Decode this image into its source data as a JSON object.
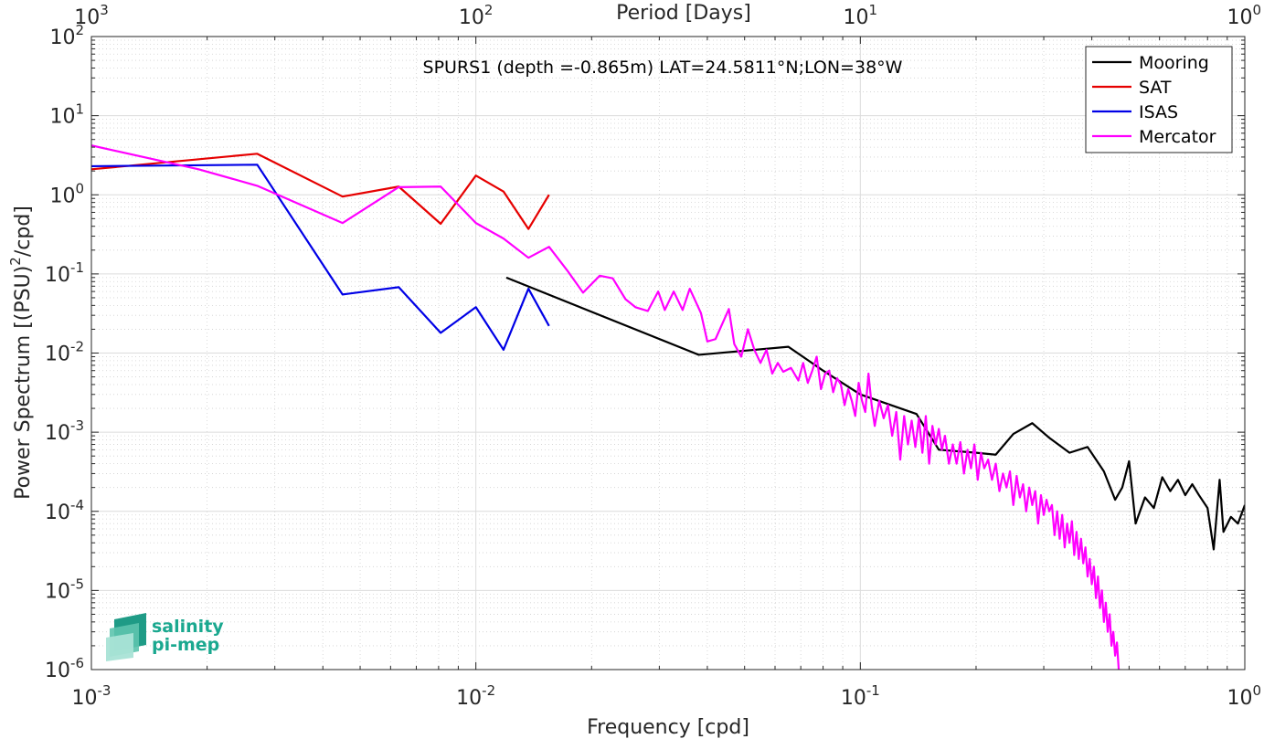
{
  "chart_data": {
    "type": "line",
    "title": "SPURS1 (depth =-0.865m) LAT=24.5811°N;LON=38°W",
    "xlabel": "Frequency [cpd]",
    "ylabel": "Power Spectrum [(PSU)²/cpd]",
    "x2label": "Period [Days]",
    "xscale": "log",
    "yscale": "log",
    "xlim": [
      0.001,
      1
    ],
    "ylim": [
      1e-06,
      100
    ],
    "grid": true,
    "legend_position": "top-right",
    "x_ticks": [
      {
        "value": 0.001,
        "base": "10",
        "exp": "-3"
      },
      {
        "value": 0.01,
        "base": "10",
        "exp": "-2"
      },
      {
        "value": 0.1,
        "base": "10",
        "exp": "-1"
      },
      {
        "value": 1,
        "base": "10",
        "exp": "0"
      }
    ],
    "x2_ticks": [
      {
        "value": 0.001,
        "base": "10",
        "exp": "3"
      },
      {
        "value": 0.01,
        "base": "10",
        "exp": "2"
      },
      {
        "value": 0.1,
        "base": "10",
        "exp": "1"
      },
      {
        "value": 1,
        "base": "10",
        "exp": "0"
      }
    ],
    "y_ticks": [
      {
        "value": 1e-06,
        "base": "10",
        "exp": "-6"
      },
      {
        "value": 1e-05,
        "base": "10",
        "exp": "-5"
      },
      {
        "value": 0.0001,
        "base": "10",
        "exp": "-4"
      },
      {
        "value": 0.001,
        "base": "10",
        "exp": "-3"
      },
      {
        "value": 0.01,
        "base": "10",
        "exp": "-2"
      },
      {
        "value": 0.1,
        "base": "10",
        "exp": "-1"
      },
      {
        "value": 1,
        "base": "10",
        "exp": "0"
      },
      {
        "value": 10,
        "base": "10",
        "exp": "1"
      },
      {
        "value": 100,
        "base": "10",
        "exp": "2"
      }
    ],
    "series": [
      {
        "name": "Mooring",
        "color": "#000000",
        "points": [
          [
            0.012,
            0.09
          ],
          [
            0.038,
            0.0095
          ],
          [
            0.065,
            0.012
          ],
          [
            0.08,
            0.006
          ],
          [
            0.1,
            0.003
          ],
          [
            0.14,
            0.0017
          ],
          [
            0.16,
            0.0006
          ],
          [
            0.2,
            0.00055
          ],
          [
            0.225,
            0.00052
          ],
          [
            0.25,
            0.00095
          ],
          [
            0.28,
            0.0013
          ],
          [
            0.31,
            0.00085
          ],
          [
            0.35,
            0.00055
          ],
          [
            0.39,
            0.00065
          ],
          [
            0.43,
            0.00032
          ],
          [
            0.46,
            0.00014
          ],
          [
            0.48,
            0.0002
          ],
          [
            0.5,
            0.00043
          ],
          [
            0.52,
            7e-05
          ],
          [
            0.55,
            0.00015
          ],
          [
            0.58,
            0.00011
          ],
          [
            0.61,
            0.00027
          ],
          [
            0.64,
            0.00018
          ],
          [
            0.67,
            0.00025
          ],
          [
            0.7,
            0.00016
          ],
          [
            0.73,
            0.00022
          ],
          [
            0.76,
            0.00016
          ],
          [
            0.8,
            0.00011
          ],
          [
            0.83,
            3.3e-05
          ],
          [
            0.86,
            0.00025
          ],
          [
            0.88,
            5.5e-05
          ],
          [
            0.92,
            8.5e-05
          ],
          [
            0.96,
            7e-05
          ],
          [
            1.0,
            0.00012
          ]
        ]
      },
      {
        "name": "SAT",
        "color": "#e60000",
        "points": [
          [
            0.001,
            2.1
          ],
          [
            0.0027,
            3.3
          ],
          [
            0.0045,
            0.95
          ],
          [
            0.0063,
            1.27
          ],
          [
            0.0081,
            0.43
          ],
          [
            0.01,
            1.75
          ],
          [
            0.0118,
            1.1
          ],
          [
            0.0137,
            0.37
          ],
          [
            0.0155,
            1.0
          ]
        ]
      },
      {
        "name": "ISAS",
        "color": "#0000e6",
        "points": [
          [
            0.001,
            2.3
          ],
          [
            0.0027,
            2.4
          ],
          [
            0.0045,
            0.055
          ],
          [
            0.0063,
            0.068
          ],
          [
            0.0081,
            0.018
          ],
          [
            0.01,
            0.038
          ],
          [
            0.0118,
            0.011
          ],
          [
            0.0137,
            0.065
          ],
          [
            0.0155,
            0.022
          ]
        ]
      },
      {
        "name": "Mercator",
        "color": "#ff00ff",
        "points": [
          [
            0.001,
            4.2
          ],
          [
            0.0019,
            2.1
          ],
          [
            0.0027,
            1.3
          ],
          [
            0.0045,
            0.44
          ],
          [
            0.0063,
            1.25
          ],
          [
            0.0081,
            1.27
          ],
          [
            0.01,
            0.44
          ],
          [
            0.0118,
            0.28
          ],
          [
            0.0137,
            0.16
          ],
          [
            0.0155,
            0.22
          ],
          [
            0.0173,
            0.11
          ],
          [
            0.019,
            0.058
          ],
          [
            0.021,
            0.095
          ],
          [
            0.0227,
            0.088
          ],
          [
            0.0245,
            0.048
          ],
          [
            0.026,
            0.038
          ],
          [
            0.028,
            0.034
          ],
          [
            0.0298,
            0.06
          ],
          [
            0.031,
            0.035
          ],
          [
            0.0327,
            0.06
          ],
          [
            0.0345,
            0.035
          ],
          [
            0.036,
            0.065
          ],
          [
            0.0385,
            0.032
          ],
          [
            0.04,
            0.014
          ],
          [
            0.042,
            0.015
          ],
          [
            0.0435,
            0.022
          ],
          [
            0.0455,
            0.036
          ],
          [
            0.047,
            0.013
          ],
          [
            0.049,
            0.009
          ],
          [
            0.051,
            0.02
          ],
          [
            0.053,
            0.011
          ],
          [
            0.055,
            0.0075
          ],
          [
            0.057,
            0.011
          ],
          [
            0.059,
            0.0055
          ],
          [
            0.061,
            0.0075
          ],
          [
            0.063,
            0.0058
          ],
          [
            0.066,
            0.0065
          ],
          [
            0.069,
            0.0045
          ],
          [
            0.071,
            0.0075
          ],
          [
            0.073,
            0.0042
          ],
          [
            0.075,
            0.006
          ],
          [
            0.077,
            0.009
          ],
          [
            0.079,
            0.0035
          ],
          [
            0.081,
            0.0055
          ],
          [
            0.083,
            0.006
          ],
          [
            0.085,
            0.0032
          ],
          [
            0.087,
            0.0048
          ],
          [
            0.089,
            0.004
          ],
          [
            0.091,
            0.0022
          ],
          [
            0.093,
            0.0035
          ],
          [
            0.095,
            0.0025
          ],
          [
            0.097,
            0.0016
          ],
          [
            0.099,
            0.0042
          ],
          [
            0.101,
            0.0025
          ],
          [
            0.103,
            0.0018
          ],
          [
            0.105,
            0.0055
          ],
          [
            0.107,
            0.0022
          ],
          [
            0.109,
            0.0012
          ],
          [
            0.112,
            0.0025
          ],
          [
            0.115,
            0.0015
          ],
          [
            0.118,
            0.0022
          ],
          [
            0.121,
            0.0009
          ],
          [
            0.124,
            0.0018
          ],
          [
            0.127,
            0.00045
          ],
          [
            0.13,
            0.0016
          ],
          [
            0.133,
            0.0007
          ],
          [
            0.136,
            0.0014
          ],
          [
            0.139,
            0.00065
          ],
          [
            0.142,
            0.0015
          ],
          [
            0.145,
            0.00055
          ],
          [
            0.148,
            0.0016
          ],
          [
            0.151,
            0.0004
          ],
          [
            0.154,
            0.0012
          ],
          [
            0.157,
            0.0007
          ],
          [
            0.16,
            0.0011
          ],
          [
            0.163,
            0.0006
          ],
          [
            0.166,
            0.0009
          ],
          [
            0.17,
            0.0004
          ],
          [
            0.174,
            0.0007
          ],
          [
            0.178,
            0.0004
          ],
          [
            0.182,
            0.00075
          ],
          [
            0.186,
            0.0003
          ],
          [
            0.19,
            0.0006
          ],
          [
            0.194,
            0.00035
          ],
          [
            0.198,
            0.0007
          ],
          [
            0.202,
            0.00025
          ],
          [
            0.206,
            0.00055
          ],
          [
            0.21,
            0.00035
          ],
          [
            0.215,
            0.00045
          ],
          [
            0.22,
            0.00025
          ],
          [
            0.225,
            0.0004
          ],
          [
            0.23,
            0.00018
          ],
          [
            0.235,
            0.0003
          ],
          [
            0.24,
            0.0002
          ],
          [
            0.245,
            0.00032
          ],
          [
            0.25,
            0.00012
          ],
          [
            0.255,
            0.00028
          ],
          [
            0.26,
            0.00015
          ],
          [
            0.265,
            0.00022
          ],
          [
            0.27,
            0.0001
          ],
          [
            0.275,
            0.0002
          ],
          [
            0.28,
            0.00012
          ],
          [
            0.285,
            0.00018
          ],
          [
            0.29,
            7e-05
          ],
          [
            0.295,
            0.00016
          ],
          [
            0.3,
            9e-05
          ],
          [
            0.305,
            0.00014
          ],
          [
            0.31,
            0.0001
          ],
          [
            0.315,
            0.00012
          ],
          [
            0.32,
            5e-05
          ],
          [
            0.325,
            0.0001
          ],
          [
            0.33,
            4.5e-05
          ],
          [
            0.335,
            9e-05
          ],
          [
            0.34,
            3.5e-05
          ],
          [
            0.345,
            7e-05
          ],
          [
            0.35,
            4e-05
          ],
          [
            0.355,
            7.5e-05
          ],
          [
            0.36,
            2.8e-05
          ],
          [
            0.365,
            5.5e-05
          ],
          [
            0.37,
            2.5e-05
          ],
          [
            0.375,
            4.5e-05
          ],
          [
            0.38,
            2.2e-05
          ],
          [
            0.385,
            3.5e-05
          ],
          [
            0.39,
            1.5e-05
          ],
          [
            0.395,
            2.5e-05
          ],
          [
            0.4,
            1.2e-05
          ],
          [
            0.405,
            2e-05
          ],
          [
            0.41,
            8e-06
          ],
          [
            0.415,
            1.5e-05
          ],
          [
            0.42,
            6e-06
          ],
          [
            0.425,
            1e-05
          ],
          [
            0.43,
            4e-06
          ],
          [
            0.435,
            7e-06
          ],
          [
            0.44,
            3e-06
          ],
          [
            0.445,
            5e-06
          ],
          [
            0.45,
            2e-06
          ],
          [
            0.455,
            3e-06
          ],
          [
            0.46,
            1.5e-06
          ],
          [
            0.465,
            2.2e-06
          ],
          [
            0.47,
            1e-06
          ]
        ]
      }
    ]
  },
  "logo": {
    "line1": "salinity",
    "line2": "pi-mep"
  }
}
